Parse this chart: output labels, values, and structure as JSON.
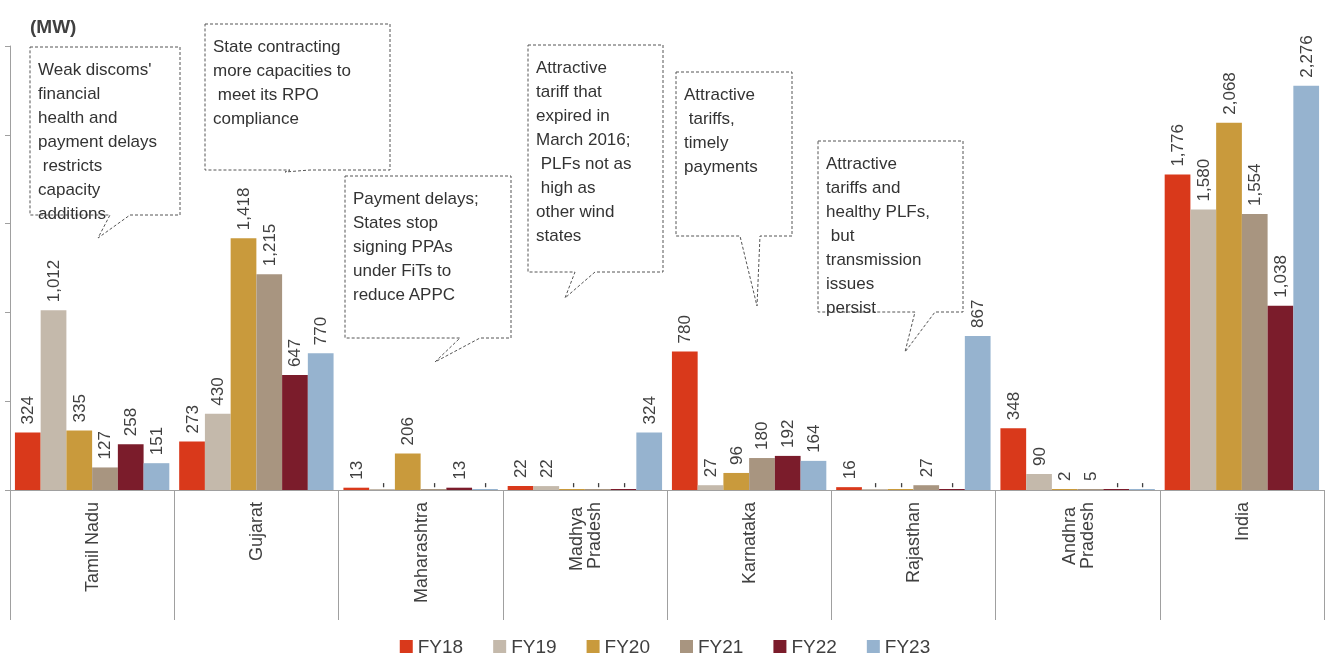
{
  "chart_data": {
    "type": "bar",
    "ylabel": "(MW)",
    "categories": [
      "Tamil Nadu",
      "Gujarat",
      "Maharashtra",
      "Madhya Pradesh",
      "Karnataka",
      "Rajasthan",
      "Andhra Pradesh",
      "India"
    ],
    "series": [
      {
        "name": "FY18",
        "color": "#d9391b",
        "values": [
          324,
          273,
          13,
          22,
          780,
          16,
          348,
          1776
        ],
        "value_labels": [
          "324",
          "273",
          "13",
          "22",
          "780",
          "16",
          "348",
          "1,776"
        ]
      },
      {
        "name": "FY19",
        "color": "#c4b9ab",
        "values": [
          1012,
          430,
          0,
          22,
          27,
          0,
          90,
          1580
        ],
        "value_labels": [
          "1,012",
          "430",
          "-",
          "22",
          "27",
          "-",
          "90",
          "1,580"
        ]
      },
      {
        "name": "FY20",
        "color": "#c99a3c",
        "values": [
          335,
          1418,
          206,
          0,
          96,
          0,
          2,
          2068
        ],
        "value_labels": [
          "335",
          "1,418",
          "206",
          "-",
          "96",
          "-",
          "2",
          "2,068"
        ]
      },
      {
        "name": "FY21",
        "color": "#a89580",
        "values": [
          127,
          1215,
          0,
          0,
          180,
          27,
          5,
          1554
        ],
        "value_labels": [
          "127",
          "1,215",
          "-",
          "-",
          "180",
          "27",
          "5",
          "1,554"
        ]
      },
      {
        "name": "FY22",
        "color": "#7b1c2b",
        "values": [
          258,
          647,
          13,
          0,
          192,
          0,
          0,
          1038
        ],
        "value_labels": [
          "258",
          "647",
          "13",
          "-",
          "192",
          "-",
          "-",
          "1,038"
        ]
      },
      {
        "name": "FY23",
        "color": "#96b3cf",
        "values": [
          151,
          770,
          0,
          324,
          164,
          867,
          0,
          2276
        ],
        "value_labels": [
          "151",
          "770",
          "-",
          "324",
          "164",
          "867",
          "-",
          "2,276"
        ]
      }
    ],
    "ylim": [
      0,
      2500
    ],
    "yticks": [
      {
        "value": 0,
        "label": null
      },
      {
        "value": 500,
        "label": null
      },
      {
        "value": 1000,
        "label": null
      },
      {
        "value": 1500,
        "label": null
      },
      {
        "value": 2000,
        "label": null
      },
      {
        "value": 2500,
        "label": null
      }
    ],
    "tick_labels": "x",
    "grid": false,
    "legend": "bottom",
    "annotations": [
      "Weak discoms' financial health and payment delays restricts capacity additions",
      "State contracting more capacities to meet its RPO compliance",
      "Payment delays; States stop signing PPAs under FiTs to reduce APPC",
      "Attractive tariff that expired in March 2016;  PLFs not as high as other wind states",
      "Attractive tariffs, timely payments",
      "Attractive tariffs and healthy PLFs, but transmission issues persist"
    ]
  }
}
